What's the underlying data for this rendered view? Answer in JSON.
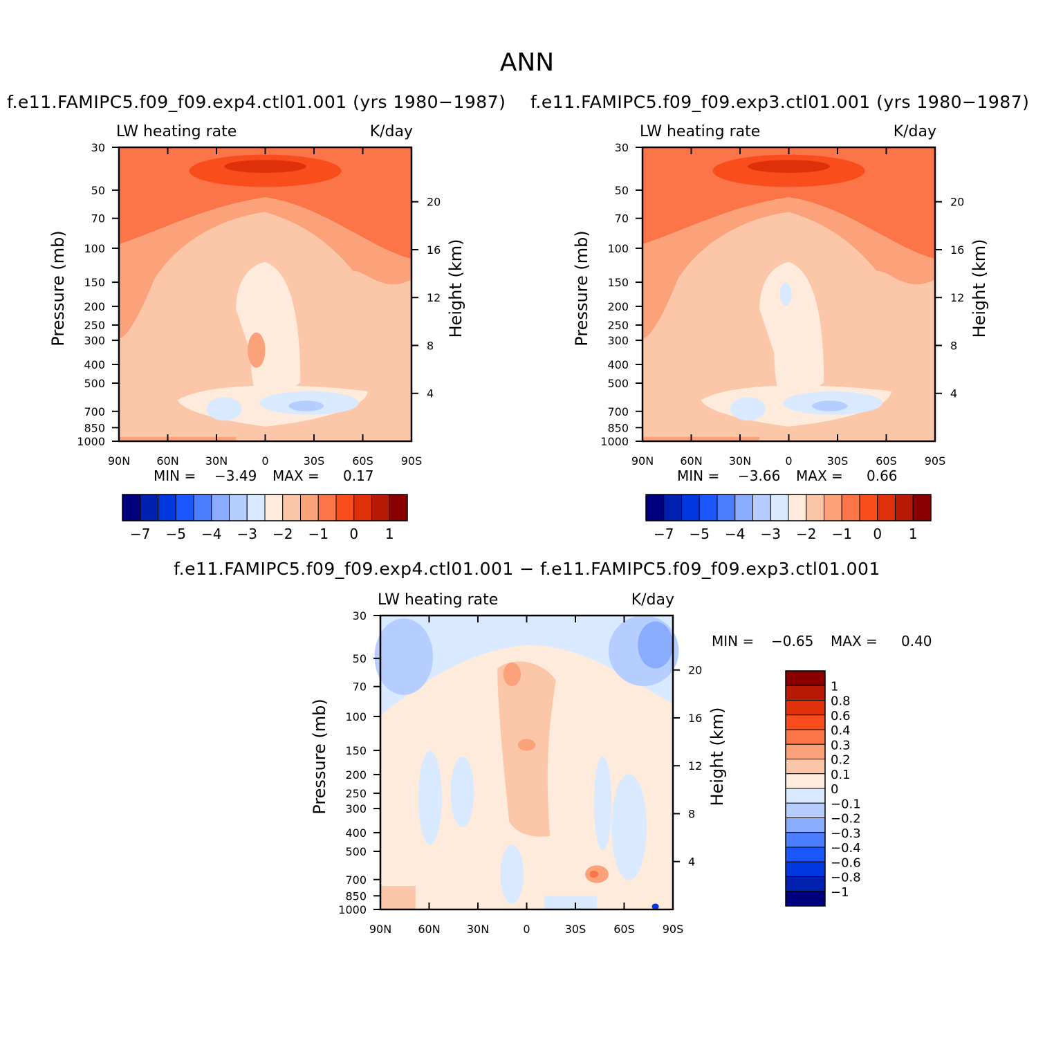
{
  "figure_title": "ANN",
  "chart_data": [
    {
      "type": "heatmap",
      "title": "f.e11.FAMIPC5.f09_f09.exp4.ctl01.001 (yrs 1980−1987)",
      "subtitle_left": "LW heating rate",
      "subtitle_right": "K/day",
      "ylabel": "Pressure (mb)",
      "ylabel_right": "Height (km)",
      "x_ticks": [
        "90N",
        "60N",
        "30N",
        "0",
        "30S",
        "60S",
        "90S"
      ],
      "y_ticks": [
        "30",
        "50",
        "70",
        "100",
        "150",
        "200",
        "250",
        "300",
        "400",
        "500",
        "700",
        "850",
        "1000"
      ],
      "y_ticks_right": [
        "20",
        "16",
        "12",
        "8",
        "4"
      ],
      "x_range": [
        "90N",
        "90S"
      ],
      "y_range": [
        30,
        1000
      ],
      "min": -3.49,
      "max": 0.17,
      "min_label": "MIN =",
      "max_label": "MAX =",
      "min_text": "−3.49",
      "max_text": "0.17",
      "colorbar_labels": [
        "−7",
        "−5",
        "−4",
        "−3",
        "−2",
        "−1",
        "0",
        "1"
      ]
    },
    {
      "type": "heatmap",
      "title": "f.e11.FAMIPC5.f09_f09.exp3.ctl01.001 (yrs 1980−1987)",
      "subtitle_left": "LW heating rate",
      "subtitle_right": "K/day",
      "ylabel": "Pressure (mb)",
      "ylabel_right": "Height (km)",
      "x_ticks": [
        "90N",
        "60N",
        "30N",
        "0",
        "30S",
        "60S",
        "90S"
      ],
      "y_ticks": [
        "30",
        "50",
        "70",
        "100",
        "150",
        "200",
        "250",
        "300",
        "400",
        "500",
        "700",
        "850",
        "1000"
      ],
      "y_ticks_right": [
        "20",
        "16",
        "12",
        "8",
        "4"
      ],
      "x_range": [
        "90N",
        "90S"
      ],
      "y_range": [
        30,
        1000
      ],
      "min": -3.66,
      "max": 0.66,
      "min_label": "MIN =",
      "max_label": "MAX =",
      "min_text": "−3.66",
      "max_text": "0.66",
      "colorbar_labels": [
        "−7",
        "−5",
        "−4",
        "−3",
        "−2",
        "−1",
        "0",
        "1"
      ]
    },
    {
      "type": "heatmap",
      "title": "f.e11.FAMIPC5.f09_f09.exp4.ctl01.001 − f.e11.FAMIPC5.f09_f09.exp3.ctl01.001",
      "subtitle_left": "LW heating rate",
      "subtitle_right": "K/day",
      "ylabel": "Pressure (mb)",
      "ylabel_right": "Height (km)",
      "x_ticks": [
        "90N",
        "60N",
        "30N",
        "0",
        "30S",
        "60S",
        "90S"
      ],
      "y_ticks": [
        "30",
        "50",
        "70",
        "100",
        "150",
        "200",
        "250",
        "300",
        "400",
        "500",
        "700",
        "850",
        "1000"
      ],
      "y_ticks_right": [
        "20",
        "16",
        "12",
        "8",
        "4"
      ],
      "x_range": [
        "90N",
        "90S"
      ],
      "y_range": [
        30,
        1000
      ],
      "min": -0.65,
      "max": 0.4,
      "min_label": "MIN =",
      "max_label": "MAX =",
      "min_text": "−0.65",
      "max_text": "0.40",
      "colorbar_labels": [
        "1",
        "0.8",
        "0.6",
        "0.4",
        "0.3",
        "0.2",
        "0.1",
        "0",
        "−0.1",
        "−0.2",
        "−0.3",
        "−0.4",
        "−0.6",
        "−0.8",
        "−1"
      ]
    }
  ],
  "palette": [
    "#00007f",
    "#0020b0",
    "#0038e0",
    "#1a57ff",
    "#4a7dff",
    "#8aacff",
    "#b6ceff",
    "#d9e9ff",
    "#ffebdc",
    "#fcc6a9",
    "#fba27b",
    "#fb7549",
    "#fa4d1c",
    "#e0300a",
    "#b81b05",
    "#8a0000"
  ]
}
